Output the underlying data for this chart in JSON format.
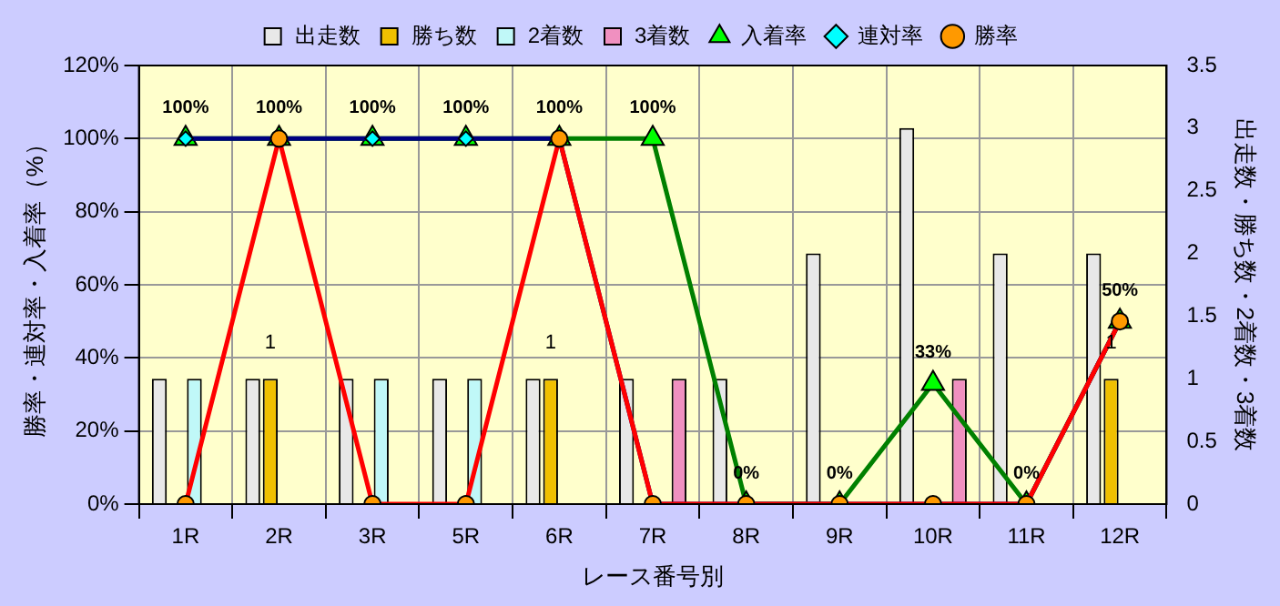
{
  "chart_data": {
    "type": "bar",
    "xlabel": "レース番号別",
    "ylabel": "勝率・連対率・入着率（%）",
    "y2label": "出走数・勝ち数・2着数・3着数",
    "categories": [
      "1R",
      "2R",
      "3R",
      "5R",
      "6R",
      "7R",
      "8R",
      "9R",
      "10R",
      "11R",
      "12R"
    ],
    "series": [
      {
        "name": "出走数",
        "axis": "y2",
        "color": "#e8e8e8",
        "values": [
          1,
          1,
          1,
          1,
          1,
          1,
          1,
          2,
          3,
          2,
          2
        ]
      },
      {
        "name": "勝ち数",
        "axis": "y2",
        "color": "#f0c000",
        "values": [
          0,
          1,
          0,
          0,
          1,
          0,
          0,
          0,
          0,
          0,
          1
        ],
        "value_labels": [
          null,
          "1",
          null,
          null,
          "1",
          null,
          null,
          null,
          null,
          null,
          "1"
        ]
      },
      {
        "name": "2着数",
        "axis": "y2",
        "color": "#c0f8f8",
        "values": [
          1,
          0,
          1,
          1,
          0,
          0,
          0,
          0,
          0,
          0,
          0
        ]
      },
      {
        "name": "3着数",
        "axis": "y2",
        "color": "#f090c0",
        "values": [
          0,
          0,
          0,
          0,
          0,
          1,
          0,
          0,
          1,
          0,
          0
        ]
      },
      {
        "name": "入着率",
        "type": "line",
        "color": "#008000",
        "marker": "triangle",
        "values": [
          100,
          100,
          100,
          100,
          100,
          100,
          0,
          0,
          33,
          0,
          50
        ],
        "value_labels": [
          "100%",
          "100%",
          "100%",
          "100%",
          "100%",
          "100%",
          "0%",
          "0%",
          "33%",
          "0%",
          "50%"
        ]
      },
      {
        "name": "連対率",
        "type": "line",
        "color": "#000080",
        "marker": "diamond",
        "values": [
          100,
          100,
          100,
          100,
          100,
          0,
          0,
          0,
          0,
          0,
          50
        ]
      },
      {
        "name": "勝率",
        "type": "line",
        "color": "#ff0000",
        "marker": "circle",
        "values": [
          0,
          100,
          0,
          0,
          100,
          0,
          0,
          0,
          0,
          0,
          50
        ]
      }
    ],
    "ylim": [
      0,
      120
    ],
    "yticks": [
      {
        "value": 0,
        "label": "0%"
      },
      {
        "value": 20,
        "label": "20%"
      },
      {
        "value": 40,
        "label": "40%"
      },
      {
        "value": 60,
        "label": "60%"
      },
      {
        "value": 80,
        "label": "80%"
      },
      {
        "value": 100,
        "label": "100%"
      },
      {
        "value": 120,
        "label": "120%"
      }
    ],
    "y2lim": [
      0,
      3.5
    ],
    "y2ticks": [
      0,
      0.5,
      1,
      1.5,
      2,
      2.5,
      3,
      3.5
    ],
    "grid": true,
    "legend": "top"
  }
}
